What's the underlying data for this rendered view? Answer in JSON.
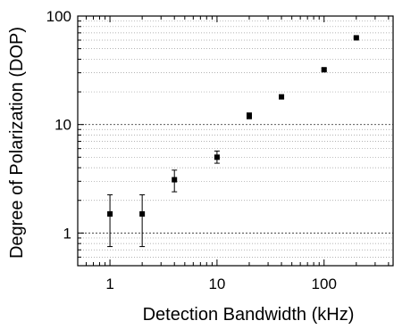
{
  "chart_data": {
    "type": "scatter",
    "xlabel": "Detection Bandwidth (kHz)",
    "ylabel": "Degree of Polarization (DOP)",
    "x_scale": "log",
    "y_scale": "log",
    "xlim": [
      0.5,
      450
    ],
    "ylim": [
      0.5,
      100
    ],
    "x_ticks": [
      1,
      10,
      100
    ],
    "x_tick_labels": [
      "1",
      "10",
      "100"
    ],
    "y_ticks": [
      1,
      10,
      100
    ],
    "y_tick_labels": [
      "1",
      "10",
      "100"
    ],
    "grid": "horizontal",
    "marker": "square",
    "points": [
      {
        "x": 1,
        "y": 1.5,
        "err_low": 0.75,
        "err_high": 2.25
      },
      {
        "x": 2,
        "y": 1.5,
        "err_low": 0.75,
        "err_high": 2.25
      },
      {
        "x": 4,
        "y": 3.1,
        "err_low": 2.4,
        "err_high": 3.8
      },
      {
        "x": 10,
        "y": 5.0,
        "err_low": 4.4,
        "err_high": 5.7
      },
      {
        "x": 20,
        "y": 12.0,
        "err_low": 11.3,
        "err_high": 12.8
      },
      {
        "x": 40,
        "y": 18.0,
        "err_low": 17.4,
        "err_high": 18.6
      },
      {
        "x": 100,
        "y": 32.0,
        "err_low": 31.2,
        "err_high": 32.8
      },
      {
        "x": 200,
        "y": 63.0,
        "err_low": 62.0,
        "err_high": 64.0
      }
    ]
  }
}
